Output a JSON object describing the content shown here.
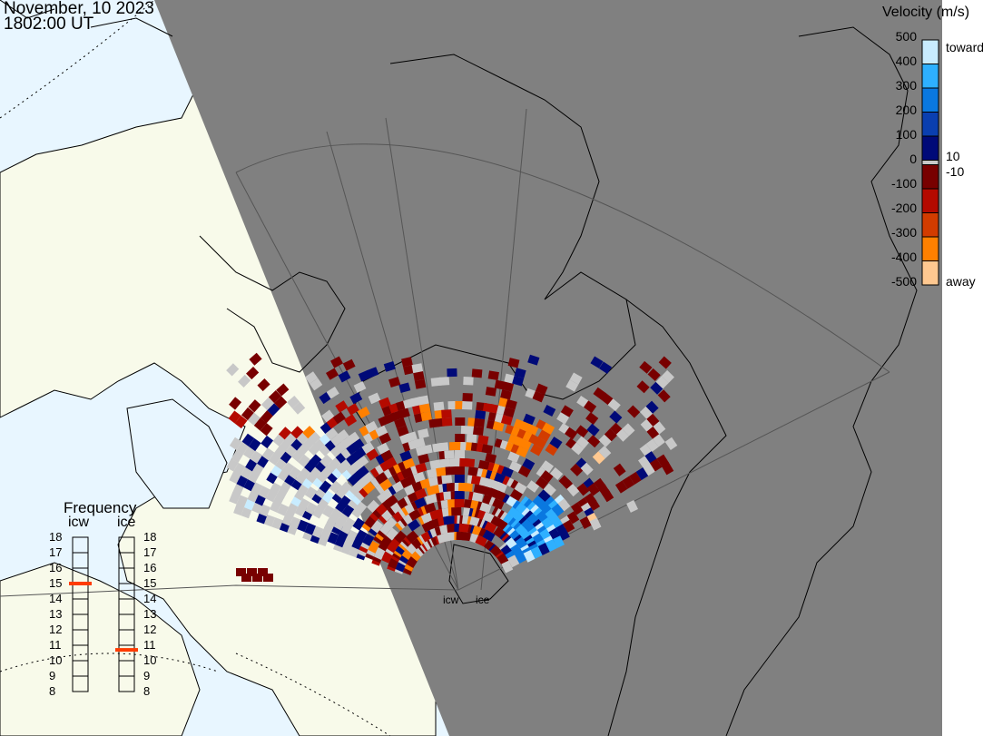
{
  "header": {
    "date": "November, 10 2023",
    "time": "1802:00 UT"
  },
  "colorbar": {
    "title": "Velocity (m/s)",
    "ticks": [
      "500",
      "400",
      "300",
      "200",
      "100",
      "0",
      "-100",
      "-200",
      "-300",
      "-400",
      "-500"
    ],
    "toward_label": "toward",
    "away_label": "away",
    "pos_threshold": "10",
    "neg_threshold": "-10",
    "toward_colors": [
      "#c8ecff",
      "#2eb0ff",
      "#0a78e0",
      "#0a3fb0",
      "#000a78"
    ],
    "ground_scatter_color": "#c8c8c8",
    "away_colors": [
      "#780000",
      "#b40a00",
      "#d23c00",
      "#ff8000",
      "#ffc890"
    ]
  },
  "frequency": {
    "title": "Frequency",
    "radars": [
      {
        "name": "icw",
        "value_mhz": 15.0
      },
      {
        "name": "ice",
        "value_mhz": 10.7
      }
    ],
    "scale": [
      "18",
      "17",
      "16",
      "15",
      "14",
      "13",
      "12",
      "11",
      "10",
      "9",
      "8"
    ],
    "marker_color": "#ff3c00"
  },
  "sites": {
    "icw": "icw",
    "ice": "ice"
  },
  "map": {
    "ocean_color": "#e8f6ff",
    "land_color": "#f8faea",
    "night_color": "#808080"
  }
}
